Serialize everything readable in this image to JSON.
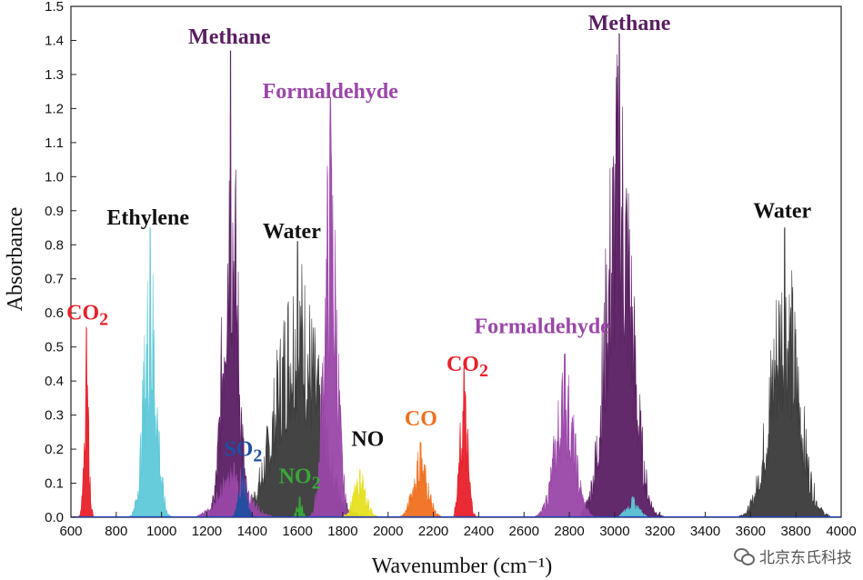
{
  "chart_data": {
    "type": "area",
    "xlabel": "Wavenumber (cm⁻¹)",
    "ylabel": "Absorbance",
    "xlim": [
      600,
      4000
    ],
    "ylim": [
      0,
      1.5
    ],
    "x_ticks": [
      600,
      800,
      1000,
      1200,
      1400,
      1600,
      1800,
      2000,
      2200,
      2400,
      2600,
      2800,
      3000,
      3200,
      3400,
      3600,
      3800,
      4000
    ],
    "y_ticks": [
      "0.0",
      "0.1",
      "0.2",
      "0.3",
      "0.4",
      "0.5",
      "0.6",
      "0.7",
      "0.8",
      "0.9",
      "1.0",
      "1.1",
      "1.2",
      "1.3",
      "1.4",
      "1.5"
    ],
    "grid": false,
    "series": [
      {
        "key": "water",
        "color": "#3a3a3a",
        "bands": [
          {
            "range": [
              1300,
              1900
            ],
            "center": 1600,
            "width": 130,
            "peak": 0.81
          },
          {
            "range": [
              3450,
              3950
            ],
            "center": 3750,
            "width": 90,
            "peak": 0.85
          }
        ]
      },
      {
        "key": "methane",
        "color": "#5a1f62",
        "bands": [
          {
            "range": [
              1200,
              1400
            ],
            "center": 1305,
            "width": 45,
            "peak": 1.37
          },
          {
            "range": [
              2850,
              3230
            ],
            "center": 3020,
            "width": 80,
            "peak": 1.42
          }
        ]
      },
      {
        "key": "formaldehyde",
        "color": "#9a47a8",
        "bands": [
          {
            "range": [
              1650,
              1850
            ],
            "center": 1746,
            "width": 40,
            "peak": 1.23
          },
          {
            "range": [
              2650,
              2950
            ],
            "center": 2780,
            "width": 60,
            "peak": 0.48
          },
          {
            "range": [
              1150,
              1560
            ],
            "center": 1320,
            "width": 90,
            "peak": 0.16
          }
        ]
      },
      {
        "key": "ethylene",
        "color": "#5ec8d8",
        "bands": [
          {
            "range": [
              830,
              1060
            ],
            "center": 950,
            "width": 40,
            "peak": 0.85
          },
          {
            "range": [
              2950,
              3150
            ],
            "center": 3080,
            "width": 40,
            "peak": 0.06
          }
        ]
      },
      {
        "key": "co2",
        "color": "#e8202a",
        "bands": [
          {
            "range": [
              630,
              700
            ],
            "center": 668,
            "width": 15,
            "peak": 0.56
          },
          {
            "range": [
              2290,
              2390
            ],
            "center": 2335,
            "width": 25,
            "peak": 0.44
          }
        ]
      },
      {
        "key": "co",
        "color": "#f07020",
        "bands": [
          {
            "range": [
              2040,
              2240
            ],
            "center": 2143,
            "width": 45,
            "peak": 0.22
          }
        ]
      },
      {
        "key": "no",
        "color": "#e6e020",
        "bands": [
          {
            "range": [
              1780,
              1960
            ],
            "center": 1876,
            "width": 40,
            "peak": 0.14
          }
        ]
      },
      {
        "key": "so2",
        "color": "#1f4fa0",
        "bands": [
          {
            "range": [
              1300,
              1410
            ],
            "center": 1360,
            "width": 25,
            "peak": 0.15
          }
        ]
      },
      {
        "key": "no2",
        "color": "#3aa83a",
        "bands": [
          {
            "range": [
              1570,
              1650
            ],
            "center": 1610,
            "width": 18,
            "peak": 0.06
          }
        ]
      }
    ],
    "annotations": [
      {
        "text": "Methane",
        "color": "#5a1f62",
        "x": 1300,
        "y": 1.39
      },
      {
        "text": "Formaldehyde",
        "color": "#9a47a8",
        "x": 1745,
        "y": 1.23
      },
      {
        "text": "Ethylene",
        "color": "#111111",
        "x": 940,
        "y": 0.86
      },
      {
        "text": "Water",
        "color": "#111111",
        "x": 1575,
        "y": 0.82
      },
      {
        "text": "CO",
        "sub": "2",
        "color": "#e8202a",
        "x": 673,
        "y": 0.58
      },
      {
        "text": "SO",
        "sub": "2",
        "color": "#1f4fa0",
        "x": 1360,
        "y": 0.18
      },
      {
        "text": "NO",
        "sub": "2",
        "color": "#3aa83a",
        "x": 1610,
        "y": 0.1
      },
      {
        "text": "NO",
        "color": "#111111",
        "x": 1910,
        "y": 0.21
      },
      {
        "text": "CO",
        "color": "#f07020",
        "x": 2145,
        "y": 0.27
      },
      {
        "text": "CO",
        "sub": "2",
        "color": "#e8202a",
        "x": 2350,
        "y": 0.43
      },
      {
        "text": "Formaldehyde",
        "color": "#9a47a8",
        "x": 2680,
        "y": 0.54
      },
      {
        "text": "Methane",
        "color": "#5a1f62",
        "x": 3065,
        "y": 1.43
      },
      {
        "text": "Water",
        "color": "#111111",
        "x": 3740,
        "y": 0.88
      }
    ]
  },
  "watermark": "北京东氏科技"
}
